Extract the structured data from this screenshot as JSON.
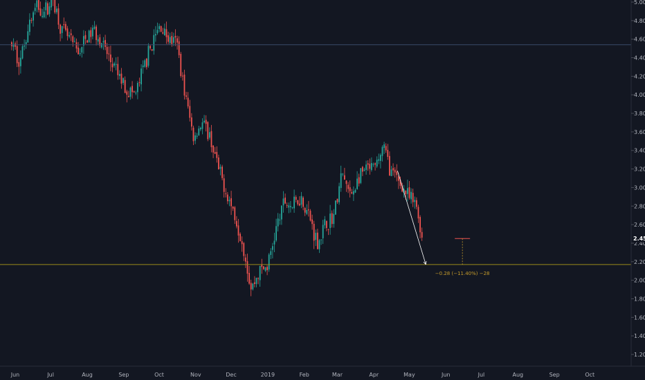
{
  "colors": {
    "background": "#131722",
    "up": "#26a69a",
    "down": "#ef5350",
    "axis_text": "#b2b5be",
    "horizontal_line_blue": "#3a4a6b",
    "horizontal_line_yellow": "#9a8a1a",
    "trend_line": "#ffffff",
    "measure": "#c69c2b",
    "current_price_bg": "#131722"
  },
  "chart_data": {
    "type": "candlestick",
    "xlabel": "",
    "ylabel": "",
    "ylim": [
      1.05,
      5.0
    ],
    "y_ticks": [
      "1.20",
      "1.40",
      "1.60",
      "1.80",
      "2.00",
      "2.20",
      "2.40",
      "2.60",
      "2.80",
      "3.00",
      "3.20",
      "3.40",
      "3.60",
      "3.80",
      "4.00",
      "4.20",
      "4.40",
      "4.60",
      "4.80",
      "5.00"
    ],
    "x_ticks": [
      "Jun",
      "Jul",
      "Aug",
      "Sep",
      "Oct",
      "Nov",
      "Dec",
      "2019",
      "Feb",
      "Mar",
      "Apr",
      "May",
      "Jun",
      "Jul",
      "Aug",
      "Sep",
      "Oct"
    ],
    "x_tick_months": [
      "2018-06",
      "2018-07",
      "2018-08",
      "2018-09",
      "2018-10",
      "2018-11",
      "2018-12",
      "2019-01",
      "2019-02",
      "2019-03",
      "2019-04",
      "2019-05",
      "2019-06",
      "2019-07",
      "2019-08",
      "2019-09",
      "2019-10"
    ],
    "last_price": "2.45",
    "horizontal_lines": [
      4.54,
      2.17
    ],
    "trend_line": {
      "from": [
        "2019-04-21",
        3.18
      ],
      "to": [
        "2019-05-15",
        2.17
      ]
    },
    "measure_text": "−0.28 (−11.40%) −28",
    "close_path": [
      [
        "2018-05-29",
        4.55
      ],
      [
        "2018-06-05",
        4.35
      ],
      [
        "2018-06-12",
        4.75
      ],
      [
        "2018-06-19",
        4.95
      ],
      [
        "2018-06-26",
        4.9
      ],
      [
        "2018-07-03",
        5.05
      ],
      [
        "2018-07-10",
        4.7
      ],
      [
        "2018-07-17",
        4.6
      ],
      [
        "2018-07-24",
        4.45
      ],
      [
        "2018-07-31",
        4.6
      ],
      [
        "2018-08-07",
        4.7
      ],
      [
        "2018-08-14",
        4.55
      ],
      [
        "2018-08-21",
        4.35
      ],
      [
        "2018-08-28",
        4.2
      ],
      [
        "2018-09-04",
        4.05
      ],
      [
        "2018-09-11",
        4.0
      ],
      [
        "2018-09-18",
        4.3
      ],
      [
        "2018-09-25",
        4.55
      ],
      [
        "2018-10-02",
        4.75
      ],
      [
        "2018-10-09",
        4.6
      ],
      [
        "2018-10-16",
        4.55
      ],
      [
        "2018-10-23",
        4.0
      ],
      [
        "2018-10-30",
        3.55
      ],
      [
        "2018-11-06",
        3.7
      ],
      [
        "2018-11-13",
        3.55
      ],
      [
        "2018-11-20",
        3.2
      ],
      [
        "2018-11-27",
        2.95
      ],
      [
        "2018-12-04",
        2.7
      ],
      [
        "2018-12-11",
        2.4
      ],
      [
        "2018-12-18",
        1.9
      ],
      [
        "2018-12-25",
        2.1
      ],
      [
        "2019-01-01",
        2.15
      ],
      [
        "2019-01-08",
        2.55
      ],
      [
        "2019-01-15",
        2.85
      ],
      [
        "2019-01-22",
        2.8
      ],
      [
        "2019-01-29",
        2.9
      ],
      [
        "2019-02-05",
        2.7
      ],
      [
        "2019-02-12",
        2.4
      ],
      [
        "2019-02-19",
        2.6
      ],
      [
        "2019-02-26",
        2.7
      ],
      [
        "2019-03-05",
        3.15
      ],
      [
        "2019-03-12",
        2.9
      ],
      [
        "2019-03-19",
        3.1
      ],
      [
        "2019-03-26",
        3.2
      ],
      [
        "2019-04-02",
        3.2
      ],
      [
        "2019-04-09",
        3.45
      ],
      [
        "2019-04-16",
        3.15
      ],
      [
        "2019-04-23",
        3.05
      ],
      [
        "2019-04-30",
        2.9
      ],
      [
        "2019-05-07",
        2.8
      ],
      [
        "2019-05-12",
        2.45
      ]
    ]
  }
}
